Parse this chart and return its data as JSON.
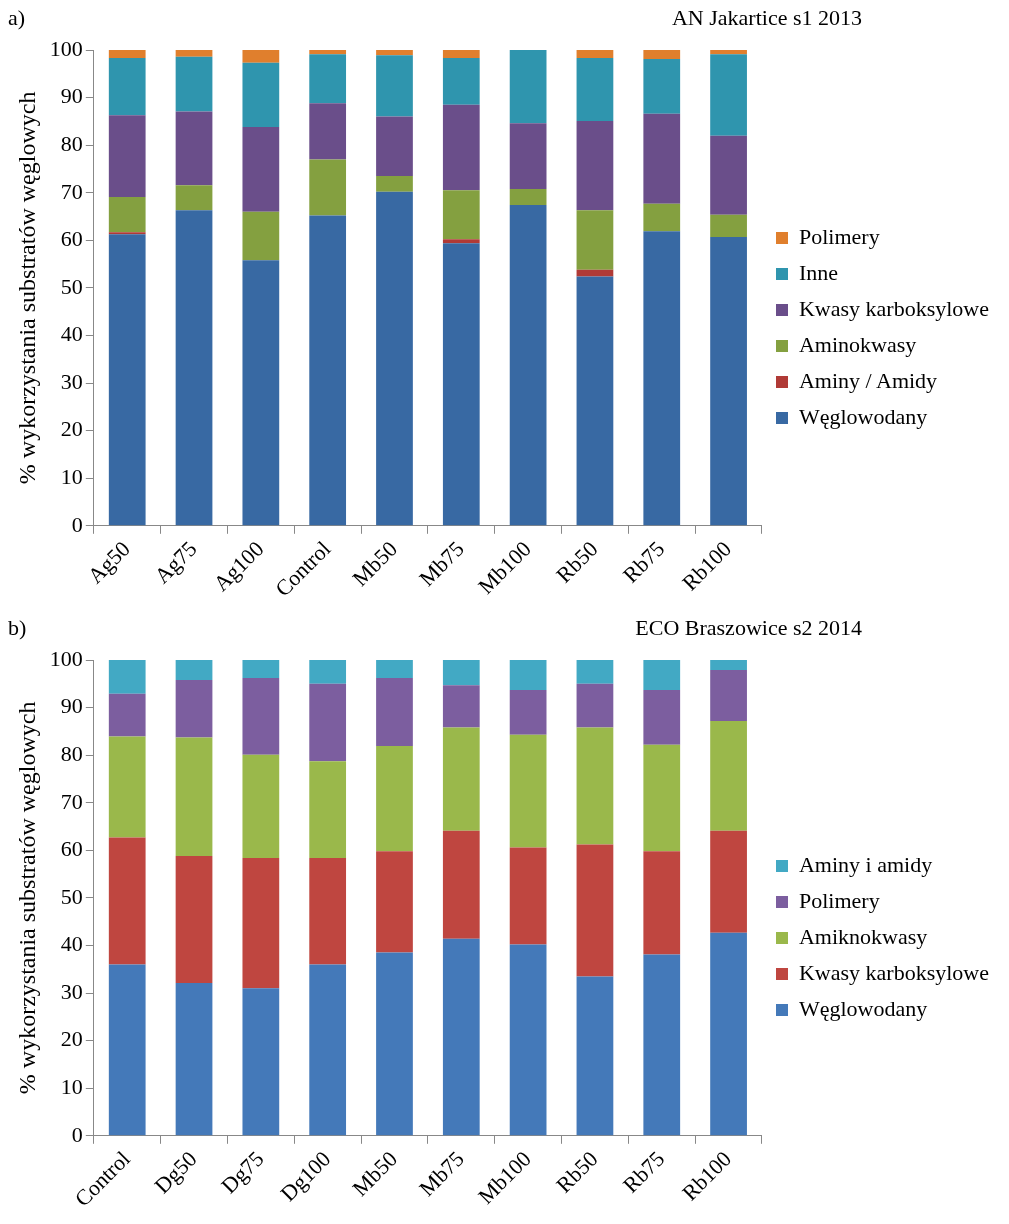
{
  "chart_data": [
    {
      "type": "bar",
      "title": "AN Jakartice s1 2013",
      "annotations": [
        "a)"
      ],
      "ylabel": "% wykorzystania substratów węglowych",
      "categories": [
        "Ag50",
        "Ag75",
        "Ag100",
        "Control",
        "Mb50",
        "Mb75",
        "Mb100",
        "Rb50",
        "Rb75",
        "Rb100"
      ],
      "stacked": true,
      "ylim": [
        0,
        100
      ],
      "yticks": [
        0,
        10,
        20,
        30,
        40,
        50,
        60,
        70,
        80,
        90,
        100
      ],
      "legend": "right",
      "series": [
        {
          "name": "Węglowodany",
          "color": "#3869a3",
          "values": [
            61.3,
            66.3,
            55.8,
            65.2,
            70.2,
            59.4,
            67.4,
            52.4,
            61.9,
            60.7
          ]
        },
        {
          "name": "Aminy / Amidy",
          "color": "#b03a36",
          "values": [
            0.4,
            0,
            0,
            0,
            0,
            0.8,
            0,
            1.4,
            0,
            0
          ]
        },
        {
          "name": "Aminokwasy",
          "color": "#84a040",
          "values": [
            7.4,
            5.3,
            10.2,
            11.8,
            3.3,
            10.3,
            3.4,
            12.5,
            5.8,
            4.7
          ]
        },
        {
          "name": "Kwasy karboksylowe",
          "color": "#6a4e8a",
          "values": [
            17.2,
            15.5,
            17.8,
            11.8,
            12.5,
            18,
            13.8,
            18.8,
            18.9,
            16.6
          ]
        },
        {
          "name": "Inne",
          "color": "#2f95ae",
          "values": [
            12,
            11.5,
            13.5,
            10.3,
            12.9,
            9.8,
            15.4,
            13.2,
            11.5,
            17.1
          ]
        },
        {
          "name": "Polimery",
          "color": "#e07f2d",
          "values": [
            1.7,
            1.4,
            2.7,
            0.9,
            1.1,
            1.7,
            0,
            1.7,
            1.9,
            0.9
          ]
        }
      ]
    },
    {
      "type": "bar",
      "title": "ECO Braszowice s2 2014",
      "annotations": [
        "b)"
      ],
      "ylabel": "% wykorzystania substratów węglowych",
      "categories": [
        "Control",
        "Dg50",
        "Dg75",
        "Dg100",
        "Mb50",
        "Mb75",
        "Mb100",
        "Rb50",
        "Rb75",
        "Rb100"
      ],
      "stacked": true,
      "ylim": [
        0,
        100
      ],
      "yticks": [
        0,
        10,
        20,
        30,
        40,
        50,
        60,
        70,
        80,
        90,
        100
      ],
      "legend": "right",
      "series": [
        {
          "name": "Węglowodany",
          "color": "#4479b9",
          "values": [
            36,
            32.1,
            31,
            36,
            38.5,
            41.4,
            40.2,
            33.5,
            38.1,
            42.7
          ]
        },
        {
          "name": "Kwasy karboksylowe",
          "color": "#bf4640",
          "values": [
            26.7,
            26.7,
            27.4,
            22.4,
            21.3,
            22.7,
            20.4,
            27.7,
            21.7,
            21.4
          ]
        },
        {
          "name": "Amiknokwasy",
          "color": "#9ab84b",
          "values": [
            21.2,
            24.9,
            21.7,
            20.3,
            22.1,
            21.7,
            23.7,
            24.6,
            22.4,
            23.1
          ]
        },
        {
          "name": "Polimery",
          "color": "#7c5e9f",
          "values": [
            9,
            12.1,
            16.1,
            16.3,
            14.3,
            8.9,
            9.4,
            9.2,
            11.5,
            10.7
          ]
        },
        {
          "name": "Aminy i amidy",
          "color": "#42a9c4",
          "values": [
            7.1,
            4.2,
            3.8,
            5,
            3.8,
            5.3,
            6.3,
            5,
            6.3,
            2.1
          ]
        }
      ]
    }
  ]
}
